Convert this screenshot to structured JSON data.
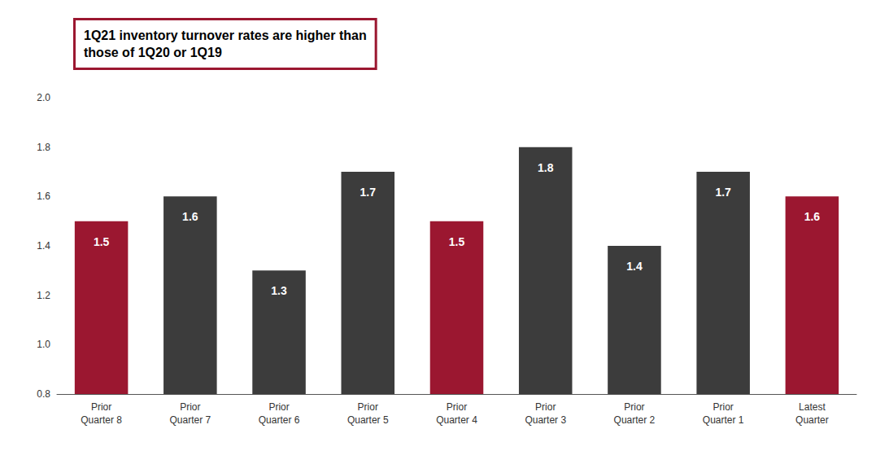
{
  "chart_data": {
    "type": "bar",
    "annotation": "1Q21 inventory turnover rates are higher than\nthose of 1Q20 or 1Q19",
    "categories": [
      "Prior\nQuarter 8",
      "Prior\nQuarter 7",
      "Prior\nQuarter 6",
      "Prior\nQuarter 5",
      "Prior\nQuarter 4",
      "Prior\nQuarter 3",
      "Prior\nQuarter 2",
      "Prior\nQuarter 1",
      "Latest\nQuarter"
    ],
    "values": [
      1.5,
      1.6,
      1.3,
      1.7,
      1.5,
      1.8,
      1.4,
      1.7,
      1.6
    ],
    "colors": [
      "#9B1730",
      "#3C3C3C",
      "#3C3C3C",
      "#3C3C3C",
      "#9B1730",
      "#3C3C3C",
      "#3C3C3C",
      "#3C3C3C",
      "#9B1730"
    ],
    "ylim": [
      0.8,
      2.0
    ],
    "yticks": [
      0.8,
      {
        "value": 1.0,
        "label": "1.0"
      },
      1.2,
      1.4,
      1.6,
      1.8,
      {
        "value": 2.0,
        "label": "2.0"
      }
    ],
    "data_labels": true,
    "grid": false
  }
}
